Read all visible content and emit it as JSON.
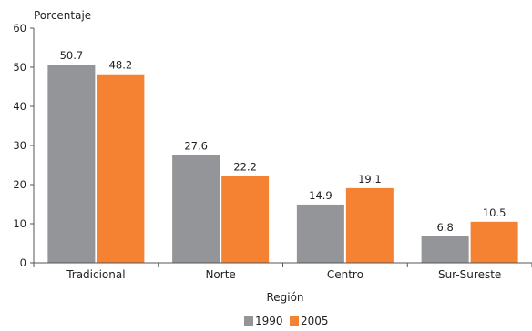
{
  "chart_data": {
    "type": "bar",
    "ylabel": "Porcentaje",
    "xlabel": "Región",
    "categories": [
      "Tradicional",
      "Norte",
      "Centro",
      "Sur-Sureste"
    ],
    "series": [
      {
        "name": "1990",
        "values": [
          50.7,
          27.6,
          14.9,
          6.8
        ],
        "color": "#939598"
      },
      {
        "name": "2005",
        "values": [
          48.2,
          22.2,
          19.1,
          10.5
        ],
        "color": "#f58232"
      }
    ],
    "ylim": [
      0,
      60
    ],
    "yticks": [
      0,
      10,
      20,
      30,
      40,
      50,
      60
    ],
    "data_labels": [
      [
        "50.7",
        "27.6",
        "14.9",
        "6.8"
      ],
      [
        "48.2",
        "22.2",
        "19.1",
        "10.5"
      ]
    ],
    "grid": false,
    "legend_position": "bottom-center"
  }
}
